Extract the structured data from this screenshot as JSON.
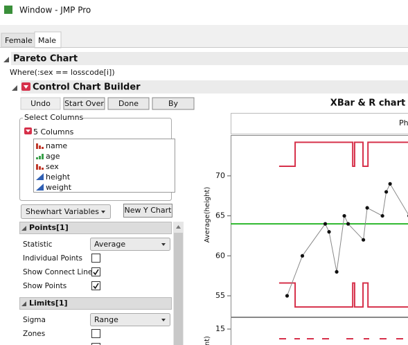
{
  "window": {
    "title": "Window - JMP Pro"
  },
  "tabs": [
    "Female",
    "Male"
  ],
  "outline": {
    "pareto": "Pareto Chart",
    "where": "Where(:sex == losscode[i])",
    "builder": "Control Chart Builder"
  },
  "buttons": [
    "Undo",
    "Start Over",
    "Done",
    "By"
  ],
  "select_columns": {
    "title": "Select Columns",
    "count": "5 Columns",
    "columns": [
      "name",
      "age",
      "sex",
      "height",
      "weight"
    ]
  },
  "controls": {
    "chart_type": "Shewhart Variables",
    "new_chart": "New Y Chart"
  },
  "points_panel": {
    "title": "Points[1]",
    "rows": [
      {
        "label": "Statistic",
        "value": "Average"
      },
      {
        "label": "Individual Points",
        "checked": false
      },
      {
        "label": "Show Connect Line",
        "checked": true
      },
      {
        "label": "Show Points",
        "checked": true
      }
    ]
  },
  "limits_panel": {
    "title": "Limits[1]",
    "rows": [
      {
        "label": "Sigma",
        "value": "Range"
      },
      {
        "label": "Zones",
        "checked": false
      }
    ]
  },
  "chart_data": {
    "type": "line",
    "title": "XBar & R chart",
    "phase_label": "Ph",
    "y_label": "Average(height)",
    "x": [
      1,
      5,
      11,
      12,
      14,
      16,
      17,
      21,
      22,
      26,
      27,
      28,
      33
    ],
    "values": [
      55,
      60,
      64,
      63,
      58,
      65,
      64,
      62,
      66,
      65,
      68,
      69,
      65
    ],
    "color": "#404040",
    "center": 64,
    "center_color": "#2db82d",
    "ucl": {
      "x": [
        -1.1,
        3.1,
        3.1,
        18.2,
        18.2,
        18.7,
        18.7,
        20.9,
        20.9,
        22.2,
        22.2,
        32.7
      ],
      "values": [
        71.2,
        71.2,
        74.2,
        74.2,
        71.2,
        71.2,
        74.2,
        74.2,
        71.2,
        71.2,
        74.2,
        74.2
      ]
    },
    "lcl": {
      "x": [
        -1.1,
        3.1,
        3.1,
        18.2,
        18.2,
        18.7,
        18.7,
        20.9,
        20.9,
        22.2,
        22.2,
        32.7
      ],
      "values": [
        56.6,
        56.6,
        53.6,
        53.6,
        56.6,
        56.6,
        53.6,
        53.6,
        56.6,
        56.6,
        53.6,
        53.6
      ]
    },
    "limit_color": "#d6304a",
    "xlim": [
      -13.8,
      32.7
    ],
    "ylim": [
      52.4,
      75.1
    ],
    "yticks": [
      55,
      60,
      65,
      70
    ],
    "range_chart": {
      "y_label": "nt)",
      "yticks": [
        15
      ]
    }
  }
}
